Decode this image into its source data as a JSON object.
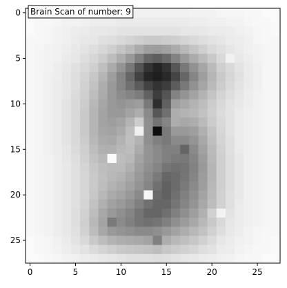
{
  "chart_data": {
    "type": "heatmap",
    "colormap": "gray_r",
    "title": "",
    "xlabel": "",
    "ylabel": "",
    "annotation": "Brain Scan of number: 9",
    "x_ticks": [
      "0",
      "5",
      "10",
      "15",
      "20",
      "25"
    ],
    "y_ticks": [
      "0",
      "5",
      "10",
      "15",
      "20",
      "25"
    ],
    "xlim": [
      -0.5,
      27.5
    ],
    "ylim": [
      27.5,
      -0.5
    ],
    "grid": false,
    "values": [
      [
        0.02,
        0.02,
        0.03,
        0.03,
        0.04,
        0.04,
        0.05,
        0.05,
        0.05,
        0.06,
        0.06,
        0.06,
        0.06,
        0.06,
        0.06,
        0.06,
        0.06,
        0.06,
        0.05,
        0.05,
        0.05,
        0.04,
        0.04,
        0.04,
        0.03,
        0.03,
        0.02,
        0.02
      ],
      [
        0.02,
        0.03,
        0.03,
        0.04,
        0.05,
        0.05,
        0.06,
        0.07,
        0.07,
        0.07,
        0.08,
        0.08,
        0.08,
        0.08,
        0.08,
        0.08,
        0.08,
        0.08,
        0.07,
        0.07,
        0.06,
        0.06,
        0.05,
        0.05,
        0.04,
        0.03,
        0.03,
        0.02
      ],
      [
        0.02,
        0.03,
        0.04,
        0.05,
        0.06,
        0.07,
        0.08,
        0.09,
        0.09,
        0.1,
        0.11,
        0.11,
        0.11,
        0.11,
        0.11,
        0.11,
        0.11,
        0.1,
        0.1,
        0.09,
        0.08,
        0.08,
        0.07,
        0.06,
        0.05,
        0.04,
        0.03,
        0.02
      ],
      [
        0.03,
        0.03,
        0.04,
        0.05,
        0.06,
        0.08,
        0.09,
        0.1,
        0.12,
        0.13,
        0.15,
        0.17,
        0.19,
        0.21,
        0.21,
        0.2,
        0.19,
        0.17,
        0.15,
        0.13,
        0.11,
        0.1,
        0.08,
        0.07,
        0.06,
        0.04,
        0.03,
        0.03
      ],
      [
        0.03,
        0.04,
        0.05,
        0.06,
        0.07,
        0.09,
        0.11,
        0.13,
        0.16,
        0.19,
        0.23,
        0.27,
        0.33,
        0.38,
        0.39,
        0.37,
        0.33,
        0.28,
        0.23,
        0.19,
        0.15,
        0.12,
        0.1,
        0.08,
        0.06,
        0.05,
        0.04,
        0.03
      ],
      [
        0.03,
        0.04,
        0.05,
        0.06,
        0.08,
        0.1,
        0.13,
        0.16,
        0.2,
        0.26,
        0.32,
        0.4,
        0.5,
        0.6,
        0.63,
        0.58,
        0.49,
        0.4,
        0.33,
        0.27,
        0.21,
        0.15,
        0.06,
        0.09,
        0.07,
        0.05,
        0.04,
        0.03
      ],
      [
        0.03,
        0.04,
        0.05,
        0.07,
        0.09,
        0.12,
        0.15,
        0.19,
        0.25,
        0.33,
        0.42,
        0.53,
        0.67,
        0.8,
        0.86,
        0.8,
        0.66,
        0.53,
        0.43,
        0.35,
        0.27,
        0.19,
        0.15,
        0.11,
        0.08,
        0.06,
        0.04,
        0.03
      ],
      [
        0.03,
        0.04,
        0.06,
        0.07,
        0.1,
        0.13,
        0.17,
        0.22,
        0.29,
        0.38,
        0.48,
        0.6,
        0.74,
        0.85,
        0.88,
        0.84,
        0.73,
        0.6,
        0.48,
        0.38,
        0.29,
        0.21,
        0.16,
        0.12,
        0.08,
        0.06,
        0.04,
        0.03
      ],
      [
        0.03,
        0.04,
        0.06,
        0.08,
        0.1,
        0.13,
        0.18,
        0.24,
        0.32,
        0.4,
        0.48,
        0.56,
        0.64,
        0.74,
        0.8,
        0.76,
        0.64,
        0.53,
        0.43,
        0.35,
        0.27,
        0.2,
        0.15,
        0.11,
        0.08,
        0.06,
        0.04,
        0.03
      ],
      [
        0.03,
        0.04,
        0.06,
        0.08,
        0.1,
        0.14,
        0.19,
        0.26,
        0.33,
        0.4,
        0.45,
        0.48,
        0.51,
        0.62,
        0.76,
        0.67,
        0.49,
        0.42,
        0.36,
        0.3,
        0.23,
        0.17,
        0.13,
        0.1,
        0.07,
        0.05,
        0.04,
        0.03
      ],
      [
        0.03,
        0.04,
        0.06,
        0.08,
        0.11,
        0.15,
        0.2,
        0.28,
        0.35,
        0.4,
        0.42,
        0.4,
        0.38,
        0.52,
        0.82,
        0.62,
        0.38,
        0.34,
        0.3,
        0.26,
        0.2,
        0.15,
        0.11,
        0.09,
        0.07,
        0.05,
        0.04,
        0.03
      ],
      [
        0.03,
        0.04,
        0.06,
        0.08,
        0.11,
        0.15,
        0.21,
        0.29,
        0.36,
        0.4,
        0.4,
        0.36,
        0.32,
        0.46,
        0.66,
        0.56,
        0.32,
        0.3,
        0.28,
        0.24,
        0.19,
        0.14,
        0.11,
        0.08,
        0.06,
        0.05,
        0.04,
        0.03
      ],
      [
        0.03,
        0.04,
        0.06,
        0.08,
        0.11,
        0.15,
        0.21,
        0.29,
        0.36,
        0.38,
        0.36,
        0.3,
        0.2,
        0.44,
        0.55,
        0.48,
        0.32,
        0.34,
        0.32,
        0.27,
        0.2,
        0.15,
        0.11,
        0.08,
        0.06,
        0.05,
        0.04,
        0.03
      ],
      [
        0.03,
        0.04,
        0.06,
        0.08,
        0.11,
        0.15,
        0.21,
        0.29,
        0.35,
        0.36,
        0.33,
        0.26,
        0.06,
        0.44,
        0.95,
        0.52,
        0.4,
        0.4,
        0.38,
        0.31,
        0.23,
        0.16,
        0.11,
        0.08,
        0.06,
        0.05,
        0.04,
        0.03
      ],
      [
        0.03,
        0.04,
        0.06,
        0.08,
        0.11,
        0.15,
        0.2,
        0.28,
        0.33,
        0.34,
        0.3,
        0.25,
        0.3,
        0.44,
        0.5,
        0.52,
        0.46,
        0.46,
        0.42,
        0.34,
        0.25,
        0.17,
        0.12,
        0.08,
        0.06,
        0.05,
        0.04,
        0.03
      ],
      [
        0.03,
        0.04,
        0.06,
        0.08,
        0.1,
        0.14,
        0.19,
        0.26,
        0.31,
        0.31,
        0.28,
        0.26,
        0.33,
        0.42,
        0.46,
        0.5,
        0.5,
        0.6,
        0.46,
        0.37,
        0.27,
        0.18,
        0.12,
        0.08,
        0.06,
        0.05,
        0.04,
        0.03
      ],
      [
        0.03,
        0.04,
        0.05,
        0.07,
        0.1,
        0.13,
        0.18,
        0.24,
        0.28,
        0.02,
        0.26,
        0.28,
        0.36,
        0.42,
        0.46,
        0.5,
        0.52,
        0.53,
        0.48,
        0.39,
        0.28,
        0.19,
        0.13,
        0.09,
        0.06,
        0.05,
        0.04,
        0.03
      ],
      [
        0.03,
        0.04,
        0.05,
        0.07,
        0.09,
        0.12,
        0.17,
        0.22,
        0.26,
        0.27,
        0.27,
        0.31,
        0.38,
        0.44,
        0.48,
        0.54,
        0.56,
        0.55,
        0.49,
        0.4,
        0.29,
        0.19,
        0.13,
        0.09,
        0.06,
        0.05,
        0.04,
        0.03
      ],
      [
        0.03,
        0.04,
        0.05,
        0.07,
        0.09,
        0.12,
        0.16,
        0.21,
        0.25,
        0.28,
        0.3,
        0.34,
        0.4,
        0.46,
        0.52,
        0.6,
        0.58,
        0.54,
        0.48,
        0.39,
        0.29,
        0.19,
        0.13,
        0.09,
        0.06,
        0.05,
        0.04,
        0.03
      ],
      [
        0.03,
        0.04,
        0.05,
        0.07,
        0.09,
        0.12,
        0.16,
        0.21,
        0.26,
        0.3,
        0.33,
        0.37,
        0.42,
        0.48,
        0.56,
        0.62,
        0.58,
        0.52,
        0.46,
        0.38,
        0.28,
        0.19,
        0.13,
        0.09,
        0.06,
        0.05,
        0.04,
        0.03
      ],
      [
        0.03,
        0.04,
        0.05,
        0.07,
        0.09,
        0.12,
        0.16,
        0.22,
        0.28,
        0.33,
        0.36,
        0.4,
        0.46,
        0.03,
        0.58,
        0.62,
        0.56,
        0.5,
        0.44,
        0.36,
        0.27,
        0.18,
        0.12,
        0.09,
        0.06,
        0.05,
        0.04,
        0.03
      ],
      [
        0.03,
        0.04,
        0.05,
        0.07,
        0.09,
        0.12,
        0.17,
        0.24,
        0.31,
        0.37,
        0.4,
        0.44,
        0.5,
        0.56,
        0.6,
        0.6,
        0.54,
        0.48,
        0.42,
        0.34,
        0.26,
        0.18,
        0.12,
        0.08,
        0.06,
        0.05,
        0.04,
        0.03
      ],
      [
        0.03,
        0.04,
        0.05,
        0.07,
        0.09,
        0.13,
        0.18,
        0.26,
        0.34,
        0.4,
        0.44,
        0.48,
        0.54,
        0.6,
        0.6,
        0.56,
        0.5,
        0.44,
        0.38,
        0.31,
        0.18,
        0.05,
        0.11,
        0.08,
        0.06,
        0.05,
        0.04,
        0.03
      ],
      [
        0.03,
        0.04,
        0.05,
        0.07,
        0.09,
        0.13,
        0.19,
        0.28,
        0.36,
        0.52,
        0.46,
        0.5,
        0.54,
        0.56,
        0.54,
        0.5,
        0.44,
        0.39,
        0.34,
        0.28,
        0.21,
        0.15,
        0.1,
        0.08,
        0.06,
        0.05,
        0.04,
        0.03
      ],
      [
        0.03,
        0.04,
        0.05,
        0.07,
        0.09,
        0.12,
        0.18,
        0.26,
        0.34,
        0.4,
        0.42,
        0.44,
        0.46,
        0.46,
        0.44,
        0.4,
        0.36,
        0.32,
        0.28,
        0.24,
        0.18,
        0.13,
        0.09,
        0.07,
        0.05,
        0.04,
        0.03,
        0.03
      ],
      [
        0.02,
        0.03,
        0.04,
        0.06,
        0.08,
        0.11,
        0.15,
        0.21,
        0.26,
        0.3,
        0.32,
        0.33,
        0.34,
        0.36,
        0.5,
        0.32,
        0.28,
        0.25,
        0.22,
        0.18,
        0.14,
        0.1,
        0.08,
        0.06,
        0.05,
        0.04,
        0.03,
        0.02
      ],
      [
        0.02,
        0.03,
        0.04,
        0.05,
        0.07,
        0.09,
        0.11,
        0.14,
        0.17,
        0.19,
        0.21,
        0.22,
        0.23,
        0.24,
        0.26,
        0.22,
        0.2,
        0.18,
        0.16,
        0.13,
        0.11,
        0.08,
        0.07,
        0.05,
        0.04,
        0.03,
        0.03,
        0.02
      ],
      [
        0.02,
        0.02,
        0.03,
        0.04,
        0.05,
        0.06,
        0.07,
        0.08,
        0.09,
        0.1,
        0.11,
        0.12,
        0.12,
        0.12,
        0.13,
        0.12,
        0.11,
        0.1,
        0.09,
        0.08,
        0.07,
        0.06,
        0.05,
        0.04,
        0.03,
        0.03,
        0.02,
        0.02
      ]
    ]
  }
}
